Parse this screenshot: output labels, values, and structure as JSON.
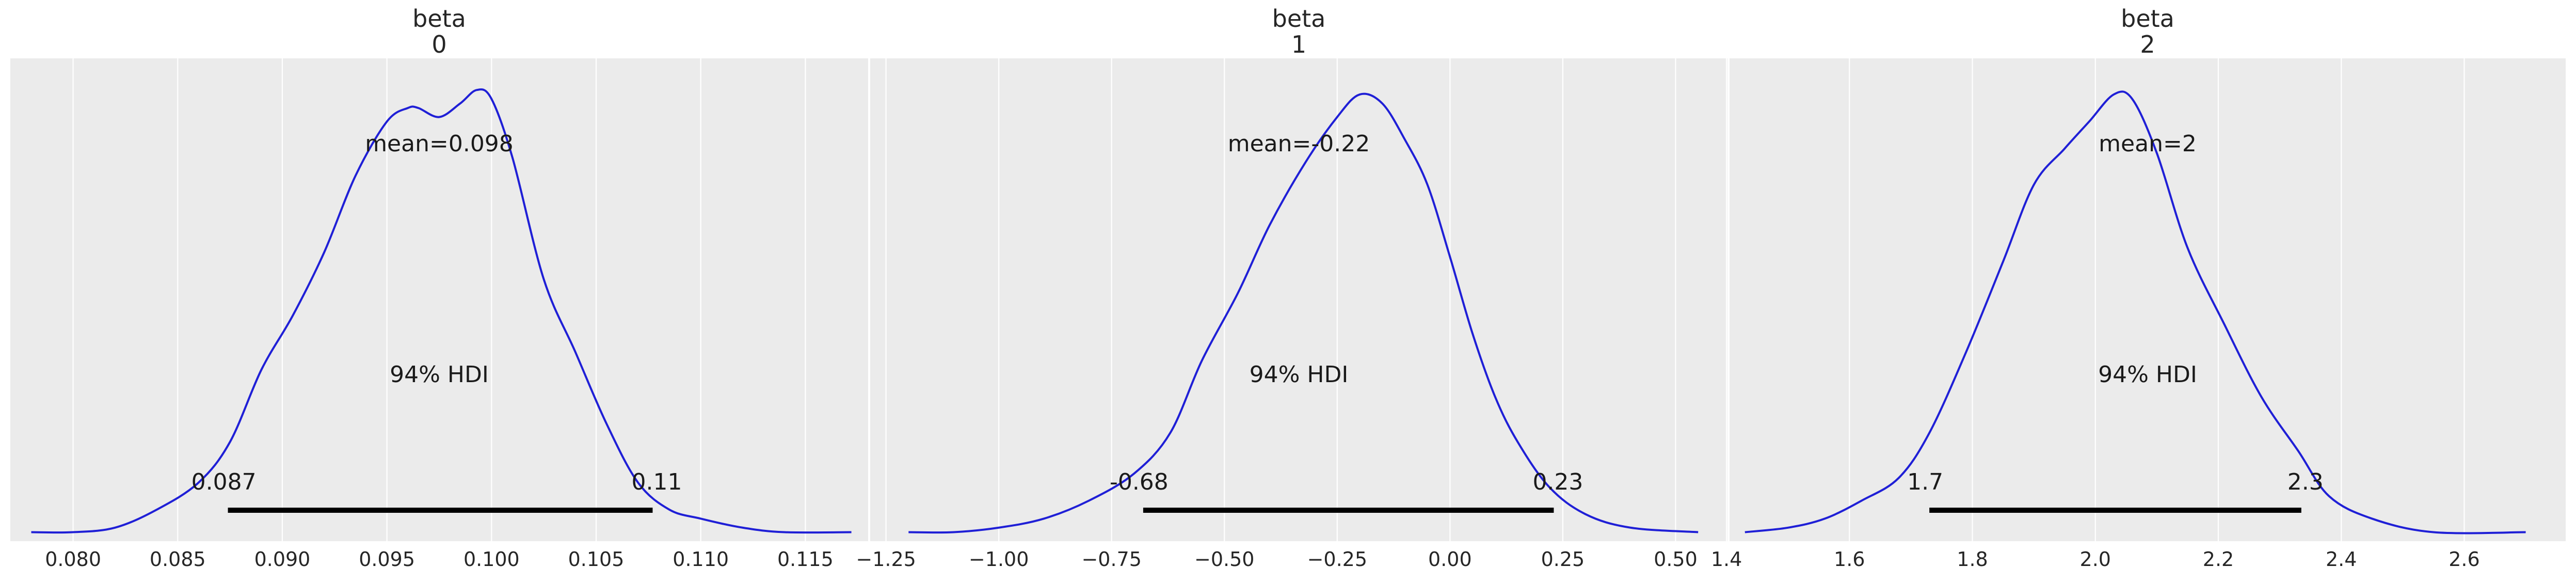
{
  "colors": {
    "panel_background": "#ebebeb",
    "grid": "#ffffff",
    "density_line": "#1f1fd6",
    "hdi_line": "#000000",
    "text": "#262626"
  },
  "chart_data": [
    {
      "type": "line",
      "title": "beta\n0",
      "title_lines": [
        "beta",
        "0"
      ],
      "xlabel": "",
      "ylabel": "",
      "xlim": [
        0.077,
        0.118
      ],
      "ylim": [
        0,
        1.07
      ],
      "xticks": [
        0.08,
        0.085,
        0.09,
        0.095,
        0.1,
        0.105,
        0.11,
        0.115
      ],
      "xtick_labels": [
        "0.080",
        "0.085",
        "0.090",
        "0.095",
        "0.100",
        "0.105",
        "0.110",
        "0.115"
      ],
      "grid": true,
      "series": [
        {
          "x": [
            0.078,
            0.08,
            0.082,
            0.084,
            0.086,
            0.0875,
            0.089,
            0.0905,
            0.092,
            0.0935,
            0.095,
            0.096,
            0.0965,
            0.0975,
            0.0985,
            0.0993,
            0.1,
            0.101,
            0.1025,
            0.104,
            0.1055,
            0.107,
            0.1085,
            0.11,
            0.112,
            0.114,
            0.1172
          ],
          "y": [
            0.02,
            0.02,
            0.03,
            0.07,
            0.13,
            0.22,
            0.38,
            0.5,
            0.64,
            0.81,
            0.93,
            0.96,
            0.96,
            0.94,
            0.97,
            1.0,
            0.98,
            0.85,
            0.58,
            0.42,
            0.26,
            0.13,
            0.07,
            0.05,
            0.03,
            0.02,
            0.02
          ]
        }
      ],
      "mean_label": "mean=0.098",
      "hdi_label": "94% HDI",
      "hdi": [
        0.0874,
        0.1077
      ],
      "hdi_low_label": "0.087",
      "hdi_high_label": "0.11"
    },
    {
      "type": "line",
      "title": "beta\n1",
      "title_lines": [
        "beta",
        "1"
      ],
      "xlabel": "",
      "ylabel": "",
      "xlim": [
        -1.285,
        0.615
      ],
      "ylim": [
        0,
        1.07
      ],
      "xticks": [
        -1.25,
        -1.0,
        -0.75,
        -0.5,
        -0.25,
        0.0,
        0.25,
        0.5
      ],
      "xtick_labels": [
        "−1.25",
        "−1.00",
        "−0.75",
        "−0.50",
        "−0.25",
        "0.00",
        "0.25",
        "0.50"
      ],
      "grid": true,
      "series": [
        {
          "x": [
            -1.2,
            -1.1,
            -1.0,
            -0.9,
            -0.8,
            -0.7,
            -0.62,
            -0.55,
            -0.47,
            -0.4,
            -0.32,
            -0.25,
            -0.2,
            -0.15,
            -0.1,
            -0.05,
            0.0,
            0.05,
            0.1,
            0.15,
            0.22,
            0.3,
            0.4,
            0.55
          ],
          "y": [
            0.02,
            0.02,
            0.03,
            0.05,
            0.09,
            0.15,
            0.24,
            0.4,
            0.55,
            0.7,
            0.84,
            0.94,
            0.99,
            0.97,
            0.89,
            0.79,
            0.63,
            0.46,
            0.32,
            0.22,
            0.12,
            0.06,
            0.03,
            0.02
          ]
        }
      ],
      "mean_label": "mean=-0.22",
      "hdi_label": "94% HDI",
      "hdi": [
        -0.68,
        0.23
      ],
      "hdi_low_label": "-0.68",
      "hdi_high_label": "0.23"
    },
    {
      "type": "line",
      "title": "beta\n2",
      "title_lines": [
        "beta",
        "2"
      ],
      "xlabel": "",
      "ylabel": "",
      "xlim": [
        1.405,
        2.765
      ],
      "ylim": [
        0,
        1.07
      ],
      "xticks": [
        1.4,
        1.6,
        1.8,
        2.0,
        2.2,
        2.4,
        2.6
      ],
      "xtick_labels": [
        "1.4",
        "1.6",
        "1.8",
        "2.0",
        "2.2",
        "2.4",
        "2.6"
      ],
      "grid": true,
      "series": [
        {
          "x": [
            1.43,
            1.5,
            1.56,
            1.62,
            1.68,
            1.73,
            1.79,
            1.85,
            1.9,
            1.95,
            1.99,
            2.03,
            2.06,
            2.1,
            2.15,
            2.21,
            2.27,
            2.33,
            2.38,
            2.45,
            2.55,
            2.7
          ],
          "y": [
            0.02,
            0.03,
            0.05,
            0.09,
            0.14,
            0.24,
            0.42,
            0.62,
            0.79,
            0.87,
            0.93,
            0.99,
            0.98,
            0.86,
            0.65,
            0.48,
            0.32,
            0.2,
            0.1,
            0.05,
            0.02,
            0.02
          ]
        }
      ],
      "mean_label": "mean=2",
      "hdi_label": "94% HDI",
      "hdi": [
        1.73,
        2.335
      ],
      "hdi_low_label": "1.7",
      "hdi_high_label": "2.3"
    }
  ]
}
